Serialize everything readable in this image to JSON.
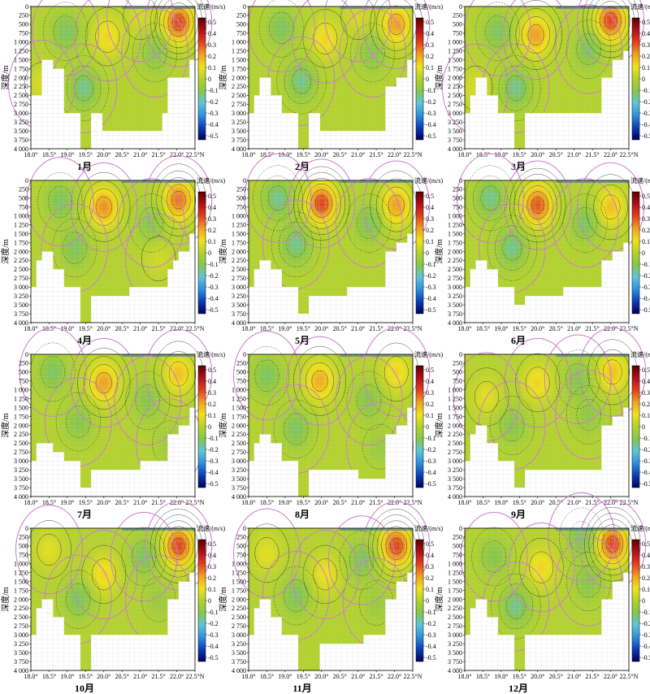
{
  "figure": {
    "colorbar_title": "流速/(m/s)",
    "ylabel": "深度/m",
    "x_tick_labels": [
      "18.0°",
      "18.5°",
      "19.0°",
      "19.5°",
      "20.0°",
      "20.5°",
      "21.0°",
      "21.5°",
      "22.0°",
      "22.5°N"
    ],
    "y_tick_labels": [
      "0",
      "250",
      "500",
      "750",
      "1 000",
      "1 250",
      "1 500",
      "1 750",
      "2 000",
      "2 250",
      "2 500",
      "2 750",
      "3 000",
      "3 250",
      "3 500",
      "3 750",
      "4 000"
    ],
    "colorbar_tick_labels": [
      "0.5",
      "0.4",
      "0.3",
      "0.2",
      "0.1",
      "0",
      "-0.1",
      "-0.2",
      "-0.3",
      "-0.4",
      "-0.5"
    ],
    "colors": {
      "colormap": [
        "#00005a",
        "#0a3db8",
        "#2f8fe0",
        "#5cc6d8",
        "#86c64a",
        "#b3d22c",
        "#f0e21a",
        "#f0a020",
        "#e2401e",
        "#b0101a",
        "#5a0000"
      ],
      "land": "#ffffff",
      "zero_contour": "#cc7acc",
      "contour": "#222222",
      "grid": "#c9c9c9"
    }
  },
  "chart_data": [
    {
      "type": "heatmap",
      "title": "1月",
      "xlabel": "",
      "ylabel": "深度/m",
      "colorbar_title": "流速/(m/s)",
      "xlim": [
        18.0,
        22.5
      ],
      "ylim": [
        4000,
        0
      ],
      "clim": [
        -0.5,
        0.5
      ],
      "bottom_depth": [
        2500,
        2500,
        1500,
        1500,
        1750,
        1750,
        3000,
        3000,
        3000,
        4000,
        4000,
        3000,
        3000,
        3500,
        3500,
        3500,
        3500,
        3500,
        3500,
        3500,
        3500,
        3500,
        3500,
        3500,
        3000,
        2000,
        2000,
        2000,
        2000,
        1500
      ],
      "features": [
        {
          "x": 20.1,
          "z": 850,
          "v": 0.12
        },
        {
          "x": 19.45,
          "z": 2300,
          "v": -0.15
        },
        {
          "x": 18.95,
          "z": 700,
          "v": -0.12
        },
        {
          "x": 22.05,
          "z": 450,
          "v": 0.3
        },
        {
          "x": 21.4,
          "z": 1300,
          "v": -0.1
        },
        {
          "x": 18.3,
          "z": 2200,
          "v": 0.06
        },
        {
          "x": 21.0,
          "z": 300,
          "v": 0.05
        }
      ]
    },
    {
      "type": "heatmap",
      "title": "2月",
      "xlabel": "",
      "ylabel": "深度/m",
      "colorbar_title": "流速/(m/s)",
      "xlim": [
        18.0,
        22.5
      ],
      "ylim": [
        4000,
        0
      ],
      "clim": [
        -0.5,
        0.5
      ],
      "bottom_depth": [
        3000,
        2500,
        2000,
        2000,
        2500,
        2500,
        3000,
        3000,
        3000,
        4000,
        4000,
        3000,
        3000,
        3500,
        3500,
        3500,
        3500,
        3500,
        3500,
        3500,
        3500,
        3500,
        3500,
        3500,
        3500,
        2250,
        2250,
        2000,
        2000,
        1500
      ],
      "features": [
        {
          "x": 20.1,
          "z": 900,
          "v": 0.12
        },
        {
          "x": 19.45,
          "z": 2100,
          "v": -0.15
        },
        {
          "x": 18.9,
          "z": 600,
          "v": -0.12
        },
        {
          "x": 22.05,
          "z": 500,
          "v": 0.2
        },
        {
          "x": 21.4,
          "z": 1300,
          "v": -0.1
        },
        {
          "x": 21.0,
          "z": 300,
          "v": 0.05
        }
      ]
    },
    {
      "type": "heatmap",
      "title": "3月",
      "xlabel": "",
      "ylabel": "深度/m",
      "colorbar_title": "流速/(m/s)",
      "xlim": [
        18.0,
        22.5
      ],
      "ylim": [
        4000,
        0
      ],
      "clim": [
        -0.5,
        0.5
      ],
      "bottom_depth": [
        3000,
        2500,
        2000,
        2000,
        2500,
        2500,
        3000,
        3000,
        3000,
        4000,
        4000,
        3000,
        3000,
        3000,
        3000,
        3000,
        3000,
        3000,
        3000,
        3000,
        3000,
        3000,
        3000,
        3000,
        3000,
        2000,
        2000,
        1500,
        1500,
        1250
      ],
      "features": [
        {
          "x": 19.95,
          "z": 800,
          "v": 0.2
        },
        {
          "x": 19.4,
          "z": 2300,
          "v": -0.15
        },
        {
          "x": 18.9,
          "z": 700,
          "v": -0.12
        },
        {
          "x": 22.0,
          "z": 400,
          "v": 0.3
        },
        {
          "x": 21.4,
          "z": 1200,
          "v": -0.12
        },
        {
          "x": 18.3,
          "z": 2300,
          "v": 0.06
        }
      ]
    },
    {
      "type": "heatmap",
      "title": "4月",
      "xlabel": "",
      "ylabel": "深度/m",
      "colorbar_title": "流速/(m/s)",
      "xlim": [
        18.0,
        22.5
      ],
      "ylim": [
        4000,
        0
      ],
      "clim": [
        -0.5,
        0.5
      ],
      "bottom_depth": [
        3000,
        2250,
        2000,
        2000,
        2500,
        2500,
        3000,
        3000,
        3000,
        4000,
        4000,
        3250,
        3250,
        3250,
        3250,
        3250,
        3250,
        3250,
        3000,
        3000,
        3000,
        3000,
        3000,
        3000,
        3000,
        2500,
        2250,
        2000,
        2000,
        1500
      ],
      "features": [
        {
          "x": 20.0,
          "z": 750,
          "v": 0.22
        },
        {
          "x": 19.2,
          "z": 1900,
          "v": -0.12
        },
        {
          "x": 18.8,
          "z": 600,
          "v": -0.12
        },
        {
          "x": 22.05,
          "z": 550,
          "v": 0.25
        },
        {
          "x": 21.3,
          "z": 1200,
          "v": -0.1
        },
        {
          "x": 21.5,
          "z": 2200,
          "v": 0.05
        }
      ]
    },
    {
      "type": "heatmap",
      "title": "5月",
      "xlabel": "",
      "ylabel": "深度/m",
      "colorbar_title": "流速/(m/s)",
      "xlim": [
        18.0,
        22.5
      ],
      "ylim": [
        4000,
        0
      ],
      "clim": [
        -0.5,
        0.5
      ],
      "bottom_depth": [
        3000,
        2500,
        2250,
        2250,
        2500,
        2500,
        3000,
        3000,
        3000,
        3750,
        3750,
        3250,
        3250,
        3250,
        3250,
        3250,
        3250,
        3250,
        3000,
        3000,
        3000,
        3000,
        3000,
        3000,
        3000,
        2000,
        2000,
        1750,
        1750,
        1500
      ],
      "features": [
        {
          "x": 20.0,
          "z": 650,
          "v": 0.3
        },
        {
          "x": 19.3,
          "z": 1800,
          "v": -0.15
        },
        {
          "x": 18.8,
          "z": 500,
          "v": -0.15
        },
        {
          "x": 22.05,
          "z": 700,
          "v": 0.2
        },
        {
          "x": 21.3,
          "z": 1200,
          "v": -0.12
        }
      ]
    },
    {
      "type": "heatmap",
      "title": "6月",
      "xlabel": "",
      "ylabel": "深度/m",
      "colorbar_title": "流速/(m/s)",
      "xlim": [
        18.0,
        22.5
      ],
      "ylim": [
        4000,
        0
      ],
      "clim": [
        -0.5,
        0.5
      ],
      "bottom_depth": [
        3000,
        2500,
        2250,
        2250,
        2500,
        2500,
        3000,
        3000,
        3000,
        3500,
        3500,
        3250,
        3250,
        3250,
        3250,
        3250,
        3250,
        3250,
        3000,
        3000,
        3000,
        3000,
        3000,
        3000,
        3000,
        2250,
        2250,
        2000,
        2000,
        1750
      ],
      "features": [
        {
          "x": 20.0,
          "z": 700,
          "v": 0.28
        },
        {
          "x": 19.3,
          "z": 1900,
          "v": -0.15
        },
        {
          "x": 18.7,
          "z": 500,
          "v": -0.15
        },
        {
          "x": 22.0,
          "z": 750,
          "v": 0.15
        },
        {
          "x": 21.3,
          "z": 1200,
          "v": -0.12
        }
      ]
    },
    {
      "type": "heatmap",
      "title": "7月",
      "xlabel": "",
      "ylabel": "深度/m",
      "colorbar_title": "流速/(m/s)",
      "xlim": [
        18.0,
        22.5
      ],
      "ylim": [
        4000,
        0
      ],
      "clim": [
        -0.5,
        0.5
      ],
      "bottom_depth": [
        3000,
        2500,
        2500,
        2500,
        2750,
        2750,
        3000,
        3000,
        3000,
        3750,
        3750,
        3250,
        3250,
        3250,
        3250,
        3250,
        3250,
        3250,
        3250,
        3250,
        3000,
        3000,
        3000,
        3000,
        3000,
        2250,
        2250,
        2000,
        2000,
        1500
      ],
      "features": [
        {
          "x": 20.0,
          "z": 800,
          "v": 0.2
        },
        {
          "x": 19.3,
          "z": 1900,
          "v": -0.1
        },
        {
          "x": 18.6,
          "z": 500,
          "v": -0.12
        },
        {
          "x": 22.05,
          "z": 550,
          "v": 0.15
        },
        {
          "x": 21.2,
          "z": 1300,
          "v": -0.1
        },
        {
          "x": 21.8,
          "z": 2500,
          "v": -0.05
        }
      ]
    },
    {
      "type": "heatmap",
      "title": "8月",
      "xlabel": "",
      "ylabel": "深度/m",
      "colorbar_title": "流速/(m/s)",
      "xlim": [
        18.0,
        22.5
      ],
      "ylim": [
        4000,
        0
      ],
      "clim": [
        -0.5,
        0.5
      ],
      "bottom_depth": [
        3000,
        2500,
        2250,
        2250,
        2500,
        2500,
        3000,
        3000,
        3000,
        4000,
        4000,
        3250,
        3250,
        3250,
        3250,
        3250,
        3250,
        3250,
        3250,
        3250,
        3500,
        3500,
        3500,
        3500,
        3500,
        2250,
        2250,
        2000,
        2000,
        1500
      ],
      "features": [
        {
          "x": 19.95,
          "z": 750,
          "v": 0.18
        },
        {
          "x": 19.3,
          "z": 2100,
          "v": -0.12
        },
        {
          "x": 18.5,
          "z": 600,
          "v": -0.12
        },
        {
          "x": 22.05,
          "z": 500,
          "v": 0.12
        },
        {
          "x": 21.3,
          "z": 1300,
          "v": -0.1
        },
        {
          "x": 21.6,
          "z": 2600,
          "v": -0.06
        }
      ]
    },
    {
      "type": "heatmap",
      "title": "9月",
      "xlabel": "",
      "ylabel": "深度/m",
      "colorbar_title": "流速/(m/s)",
      "xlim": [
        18.0,
        22.5
      ],
      "ylim": [
        4000,
        0
      ],
      "clim": [
        -0.5,
        0.5
      ],
      "bottom_depth": [
        3000,
        2250,
        2000,
        2000,
        2500,
        2500,
        3000,
        3000,
        3000,
        3750,
        3750,
        3250,
        3250,
        3250,
        3250,
        3250,
        3250,
        3250,
        3250,
        3250,
        3250,
        3250,
        3250,
        3250,
        3250,
        2000,
        2000,
        1750,
        1750,
        1500
      ],
      "features": [
        {
          "x": 20.0,
          "z": 800,
          "v": 0.12
        },
        {
          "x": 18.6,
          "z": 1200,
          "v": 0.08
        },
        {
          "x": 19.3,
          "z": 2000,
          "v": -0.1
        },
        {
          "x": 21.1,
          "z": 700,
          "v": -0.1
        },
        {
          "x": 22.05,
          "z": 500,
          "v": 0.15
        },
        {
          "x": 21.4,
          "z": 1700,
          "v": -0.08
        }
      ]
    },
    {
      "type": "heatmap",
      "title": "10月",
      "xlabel": "",
      "ylabel": "深度/m",
      "colorbar_title": "流速/(m/s)",
      "xlim": [
        18.0,
        22.5
      ],
      "ylim": [
        4000,
        0
      ],
      "clim": [
        -0.5,
        0.5
      ],
      "bottom_depth": [
        3000,
        2250,
        2000,
        2000,
        2500,
        2500,
        3000,
        3000,
        3000,
        4000,
        4000,
        3000,
        3000,
        3000,
        3000,
        3000,
        3000,
        3000,
        3000,
        3000,
        3000,
        3000,
        3000,
        3000,
        3000,
        2000,
        2000,
        1500,
        1500,
        1250
      ],
      "features": [
        {
          "x": 20.0,
          "z": 1300,
          "v": 0.12
        },
        {
          "x": 18.5,
          "z": 600,
          "v": 0.08
        },
        {
          "x": 19.3,
          "z": 2000,
          "v": -0.12
        },
        {
          "x": 21.1,
          "z": 800,
          "v": -0.12
        },
        {
          "x": 22.05,
          "z": 500,
          "v": 0.3
        },
        {
          "x": 21.5,
          "z": 2000,
          "v": -0.06
        }
      ]
    },
    {
      "type": "heatmap",
      "title": "11月",
      "xlabel": "",
      "ylabel": "深度/m",
      "colorbar_title": "流速/(m/s)",
      "xlim": [
        18.0,
        22.5
      ],
      "ylim": [
        4000,
        0
      ],
      "clim": [
        -0.5,
        0.5
      ],
      "bottom_depth": [
        3000,
        2250,
        2000,
        2000,
        2500,
        2500,
        3000,
        3000,
        3000,
        4000,
        4000,
        4000,
        4000,
        3250,
        3250,
        3250,
        3250,
        3250,
        3250,
        3250,
        3250,
        3000,
        3000,
        3000,
        3000,
        2000,
        2000,
        1500,
        1500,
        1250
      ],
      "features": [
        {
          "x": 20.1,
          "z": 1300,
          "v": 0.1
        },
        {
          "x": 18.5,
          "z": 700,
          "v": 0.08
        },
        {
          "x": 19.3,
          "z": 1900,
          "v": -0.12
        },
        {
          "x": 21.1,
          "z": 900,
          "v": -0.12
        },
        {
          "x": 22.05,
          "z": 500,
          "v": 0.3
        },
        {
          "x": 21.5,
          "z": 2100,
          "v": -0.06
        }
      ]
    },
    {
      "type": "heatmap",
      "title": "12月",
      "xlabel": "",
      "ylabel": "深度/m",
      "colorbar_title": "流速/(m/s)",
      "xlim": [
        18.0,
        22.5
      ],
      "ylim": [
        4000,
        0
      ],
      "clim": [
        -0.5,
        0.5
      ],
      "bottom_depth": [
        3000,
        2250,
        2000,
        2000,
        2500,
        2500,
        3000,
        3000,
        3000,
        4000,
        4000,
        3000,
        3000,
        3000,
        3000,
        3000,
        3000,
        3000,
        3000,
        3000,
        3000,
        3000,
        3000,
        3000,
        3000,
        2000,
        2000,
        1500,
        1500,
        1250
      ],
      "features": [
        {
          "x": 20.1,
          "z": 1100,
          "v": 0.12
        },
        {
          "x": 19.4,
          "z": 2200,
          "v": -0.15
        },
        {
          "x": 18.8,
          "z": 800,
          "v": -0.1
        },
        {
          "x": 21.2,
          "z": 250,
          "v": -0.12
        },
        {
          "x": 22.05,
          "z": 450,
          "v": 0.3
        },
        {
          "x": 21.4,
          "z": 1500,
          "v": -0.1
        }
      ]
    }
  ]
}
